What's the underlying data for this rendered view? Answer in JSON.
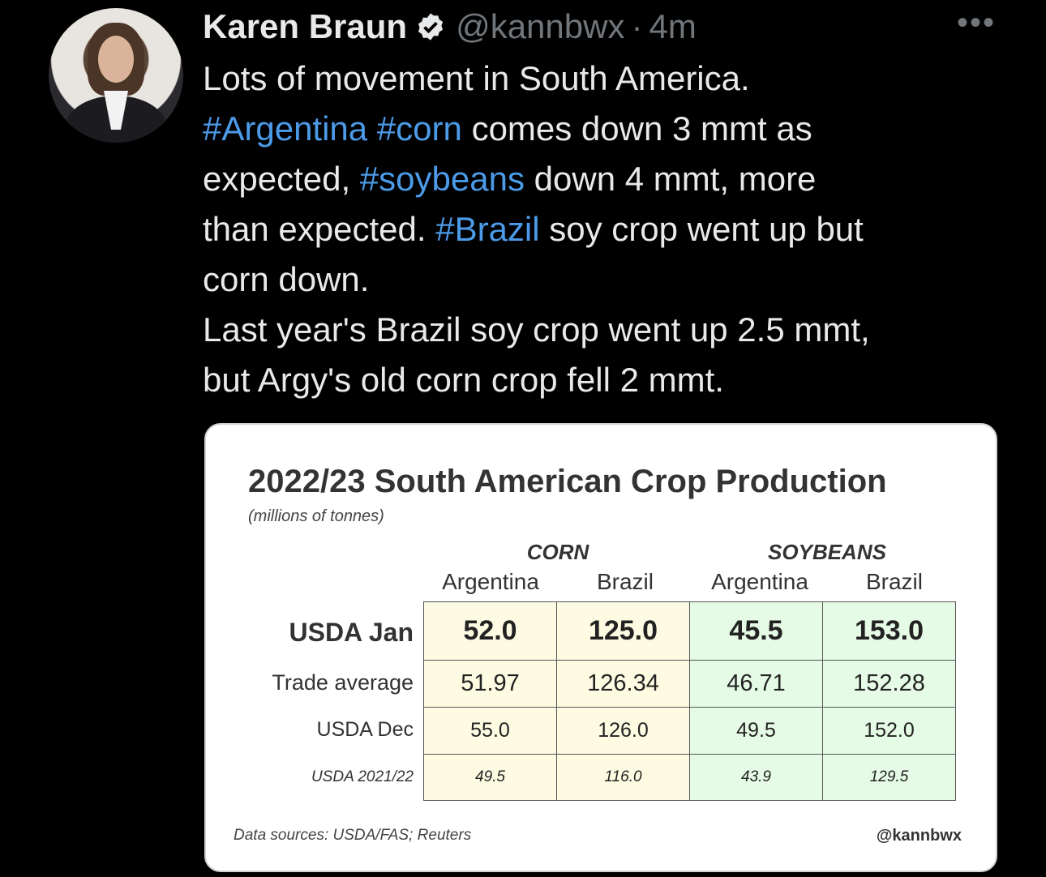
{
  "author": {
    "name": "Karen Braun",
    "handle": "@kannbwx",
    "separator": "·",
    "time": "4m",
    "more": "•••"
  },
  "tweet": {
    "l1": "Lots of movement in South America.",
    "l2_tag1": "#Argentina",
    "l2_tag2": "#corn",
    "l2_text": "comes down 3 mmt as",
    "l3_text1": "expected,",
    "l3_tag": "#soybeans",
    "l3_text2": "down 4 mmt, more",
    "l4_text1": "than expected.",
    "l4_tag": "#Brazil",
    "l4_text2": "soy crop went up but",
    "l5": "corn down.",
    "l6": "Last year's Brazil soy crop went up 2.5 mmt,",
    "l7": "but Argy's old corn crop fell 2 mmt."
  },
  "colors": {
    "hashtag": "#4c9be8",
    "corn_fill": "#fdfbe2",
    "soy_fill": "#e6fbe6"
  },
  "chart_data": {
    "type": "table",
    "title": "2022/23 South American Crop Production",
    "subtitle": "(millions of tonnes)",
    "groups": [
      "CORN",
      "SOYBEANS"
    ],
    "columns": [
      "Argentina",
      "Brazil",
      "Argentina",
      "Brazil"
    ],
    "rows": [
      {
        "label": "USDA Jan",
        "values": [
          "52.0",
          "125.0",
          "45.5",
          "153.0"
        ]
      },
      {
        "label": "Trade average",
        "values": [
          "51.97",
          "126.34",
          "46.71",
          "152.28"
        ]
      },
      {
        "label": "USDA Dec",
        "values": [
          "55.0",
          "126.0",
          "49.5",
          "152.0"
        ]
      },
      {
        "label": "USDA 2021/22",
        "values": [
          "49.5",
          "116.0",
          "43.9",
          "129.5"
        ]
      }
    ],
    "source": "Data sources: USDA/FAS; Reuters",
    "credit": "@kannbwx"
  }
}
